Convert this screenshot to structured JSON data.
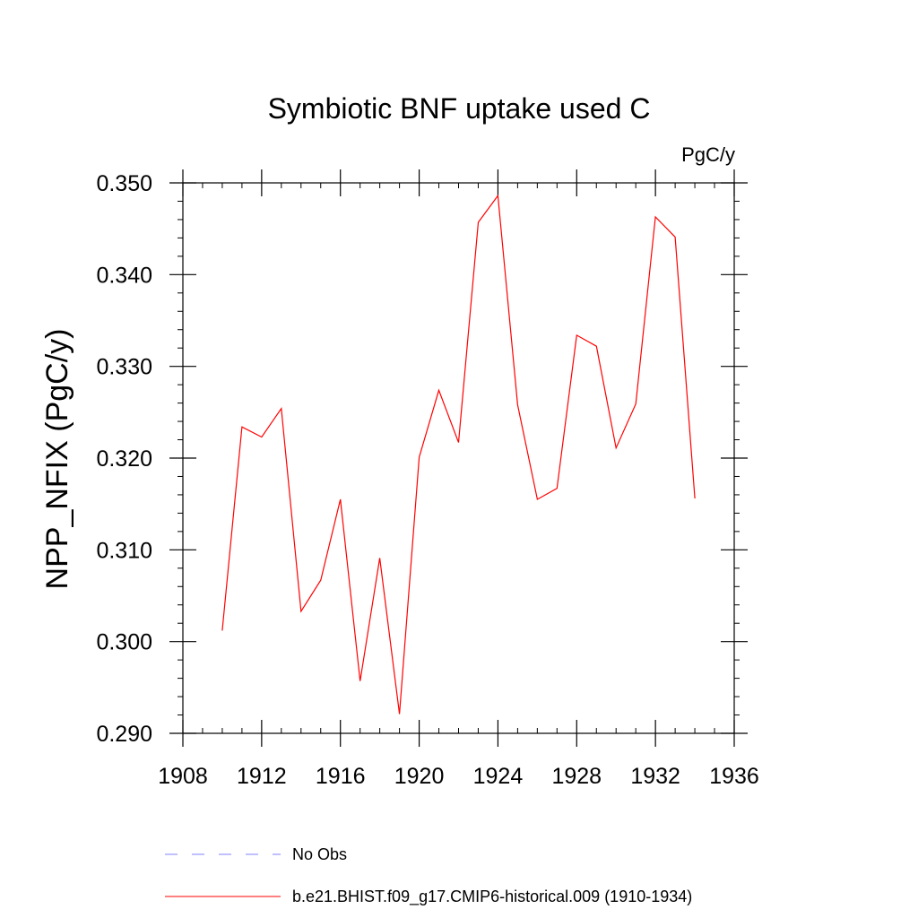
{
  "chart_data": {
    "type": "line",
    "title": "Symbiotic BNF uptake used C",
    "units_label": "PgC/y",
    "ylabel": "NPP_NFIX  (PgC/y)",
    "xlabel": "",
    "xlim": [
      1908,
      1936
    ],
    "ylim": [
      0.29,
      0.35
    ],
    "x_ticks": [
      1908,
      1912,
      1916,
      1920,
      1924,
      1928,
      1932,
      1936
    ],
    "x_tick_labels": [
      "1908",
      "1912",
      "1916",
      "1920",
      "1924",
      "1928",
      "1932",
      "1936"
    ],
    "y_ticks": [
      0.29,
      0.3,
      0.31,
      0.32,
      0.33,
      0.34,
      0.35
    ],
    "y_tick_labels": [
      "0.290",
      "0.300",
      "0.310",
      "0.320",
      "0.330",
      "0.340",
      "0.350"
    ],
    "grid": false,
    "legend_position": "bottom",
    "series": [
      {
        "name": "b.e21.BHIST.f09_g17.CMIP6-historical.009 (1910-1934)",
        "color": "#ff0000",
        "style": "solid",
        "x": [
          1910,
          1911,
          1912,
          1913,
          1914,
          1915,
          1916,
          1917,
          1918,
          1919,
          1920,
          1921,
          1922,
          1923,
          1924,
          1925,
          1926,
          1927,
          1928,
          1929,
          1930,
          1931,
          1932,
          1933,
          1934
        ],
        "y": [
          0.3012,
          0.3234,
          0.3223,
          0.3254,
          0.3033,
          0.3067,
          0.3155,
          0.2957,
          0.3091,
          0.2921,
          0.3201,
          0.3274,
          0.3217,
          0.3457,
          0.3486,
          0.3258,
          0.3155,
          0.3167,
          0.3334,
          0.3322,
          0.3211,
          0.3259,
          0.3463,
          0.3441,
          0.3156
        ]
      }
    ],
    "legend": [
      {
        "label": "No Obs",
        "color": "#8080ff",
        "style": "dashed"
      },
      {
        "label": "b.e21.BHIST.f09_g17.CMIP6-historical.009 (1910-1934)",
        "color": "#ff0000",
        "style": "solid"
      }
    ]
  }
}
